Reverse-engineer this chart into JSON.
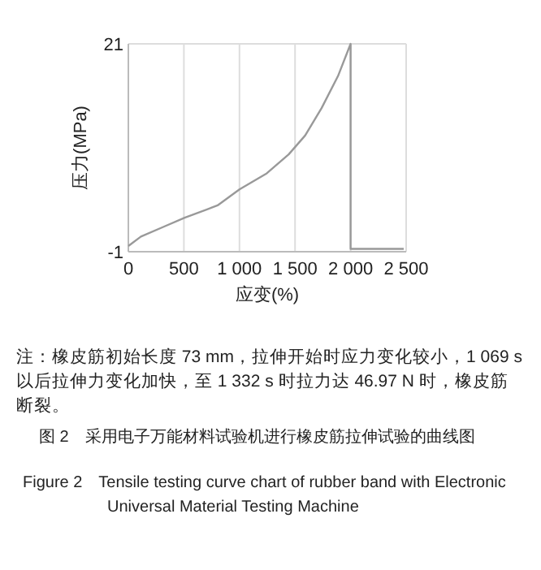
{
  "chart_data": {
    "type": "line",
    "xlabel": "应变(%)",
    "ylabel": "压力(MPa)",
    "series": [
      {
        "color": "#999999",
        "x": [
          0,
          113,
          310,
          507,
          803,
          1000,
          1246,
          1443,
          1591,
          1739,
          1887,
          2000,
          2000,
          2478
        ],
        "values": [
          -0.4,
          0.6,
          1.6,
          2.6,
          3.9,
          5.6,
          7.3,
          9.3,
          11.3,
          14.2,
          17.6,
          21,
          -0.7,
          -0.7
        ]
      }
    ],
    "xlim": [
      0,
      2500
    ],
    "ylim": [
      -1,
      21
    ],
    "xticks": [
      0,
      500,
      {
        "value": 1000,
        "label": "1 000"
      },
      {
        "value": 1500,
        "label": "1 500"
      },
      {
        "value": 2000,
        "label": "2 000"
      },
      {
        "value": 2500,
        "label": "2 500"
      }
    ],
    "yticks": [
      -1,
      21
    ],
    "grid": true,
    "marker": "none",
    "line_style": "solid",
    "annotations": [
      "注：橡皮筋初始长度 73 mm，拉伸开始时应力变化较小，1 069 s 以后拉伸力变化加快，至 1 332 s 时拉力达 46.97 N 时，橡皮筋断裂。",
      "图 2　采用电子万能材料试验机进行橡皮筋拉伸试验的曲线图",
      "Figure 2　Tensile testing curve chart of rubber band with Electronic Universal Material Testing Machine"
    ]
  }
}
